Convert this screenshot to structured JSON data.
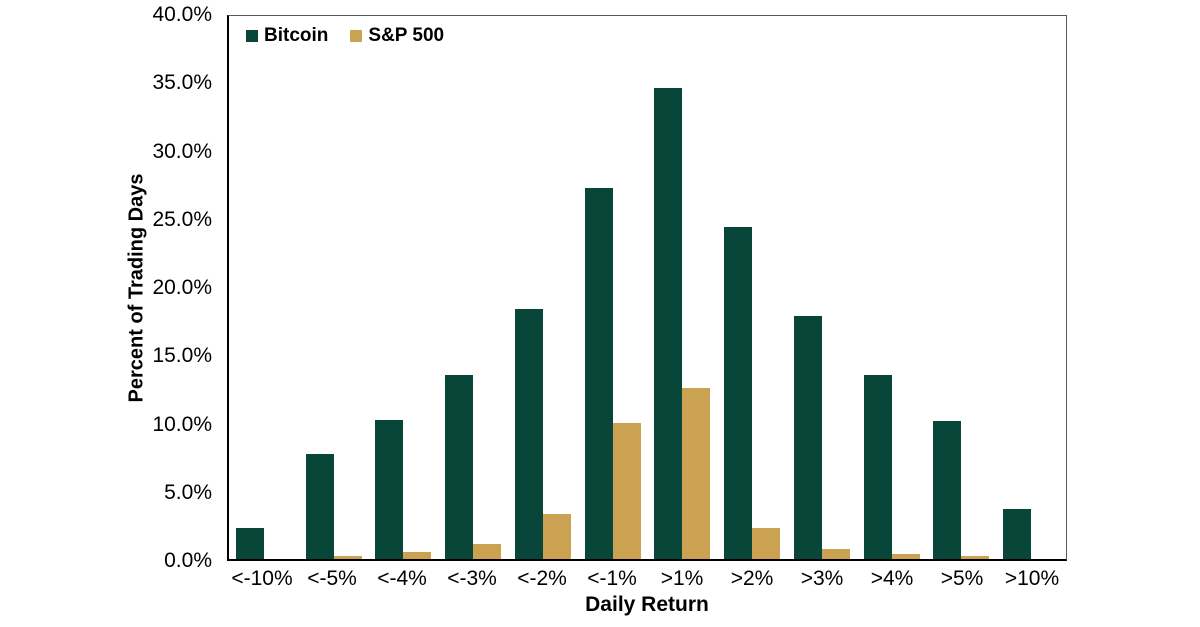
{
  "chart_data": {
    "type": "bar",
    "title": "",
    "xlabel": "Daily Return",
    "ylabel": "Percent of Trading Days",
    "ylim": [
      0,
      40
    ],
    "grid": false,
    "legend_position": "top-left-inside",
    "categories": [
      "<-10%",
      "<-5%",
      "<-4%",
      "<-3%",
      "<-2%",
      "<-1%",
      ">1%",
      ">2%",
      ">3%",
      ">4%",
      ">5%",
      ">10%"
    ],
    "series": [
      {
        "name": "Bitcoin",
        "color": "#084639",
        "values": [
          2.3,
          7.7,
          10.2,
          13.5,
          18.3,
          27.2,
          34.5,
          24.3,
          17.8,
          13.5,
          10.1,
          3.7
        ]
      },
      {
        "name": "S&P 500",
        "color": "#caa251",
        "values": [
          0.0,
          0.2,
          0.5,
          1.1,
          3.3,
          10.0,
          12.5,
          2.3,
          0.7,
          0.4,
          0.2,
          0.0
        ]
      }
    ],
    "yticks": [
      {
        "value": 0,
        "label": "0.0%"
      },
      {
        "value": 5,
        "label": "5.0%"
      },
      {
        "value": 10,
        "label": "10.0%"
      },
      {
        "value": 15,
        "label": "15.0%"
      },
      {
        "value": 20,
        "label": "20.0%"
      },
      {
        "value": 25,
        "label": "25.0%"
      },
      {
        "value": 30,
        "label": "30.0%"
      },
      {
        "value": 35,
        "label": "35.0%"
      },
      {
        "value": 40,
        "label": "40.0%"
      }
    ]
  }
}
